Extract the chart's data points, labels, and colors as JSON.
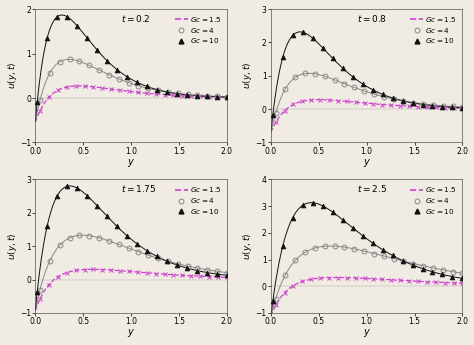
{
  "panels": [
    {
      "t": 0.2,
      "ylim": [
        -1,
        2
      ],
      "yticks": [
        -1,
        0,
        1,
        2
      ]
    },
    {
      "t": 0.8,
      "ylim": [
        -1,
        3
      ],
      "yticks": [
        -1,
        0,
        1,
        2,
        3
      ]
    },
    {
      "t": 1.75,
      "ylim": [
        -1,
        3
      ],
      "yticks": [
        -1,
        0,
        1,
        2,
        3
      ]
    },
    {
      "t": 2.5,
      "ylim": [
        -1,
        4
      ],
      "yticks": [
        -1,
        0,
        1,
        2,
        3,
        4
      ]
    }
  ],
  "xlim": [
    0,
    2
  ],
  "xticks": [
    0,
    0.5,
    1.0,
    1.5,
    2.0
  ],
  "xlabel": "y",
  "col_gc15": "#cc44cc",
  "col_gc4": "#888888",
  "col_gc10": "#111111",
  "bg_color": "#f0ece4"
}
